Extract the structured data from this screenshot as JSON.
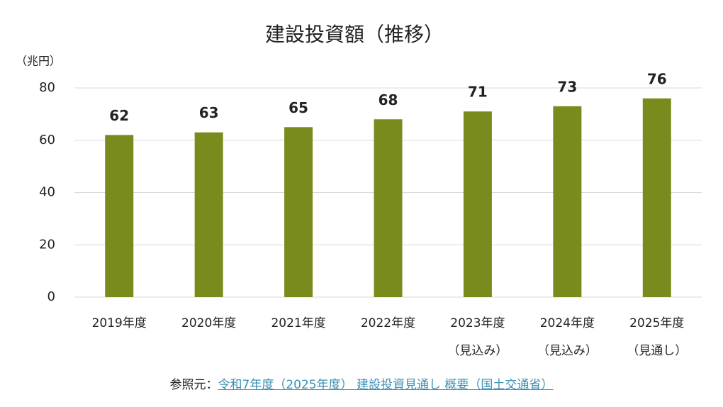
{
  "chart_data": {
    "type": "bar",
    "title": "建設投資額（推移）",
    "y_label": "（兆円）",
    "categories": [
      "2019年度",
      "2020年度",
      "2021年度",
      "2022年度",
      "2023年度",
      "2024年度",
      "2025年度"
    ],
    "category_notes": [
      null,
      null,
      null,
      null,
      "（見込み）",
      "（見込み）",
      "（見通し）"
    ],
    "values": [
      62,
      63,
      65,
      68,
      71,
      73,
      76
    ],
    "color": "#7a8b1d",
    "ylim": [
      0,
      80
    ],
    "yticks": [
      0,
      20,
      40,
      60,
      80
    ],
    "grid": true
  },
  "source": {
    "prefix": "参照元：",
    "link": "令和7年度（2025年度） 建設投資見通し 概要（国土交通省）"
  }
}
